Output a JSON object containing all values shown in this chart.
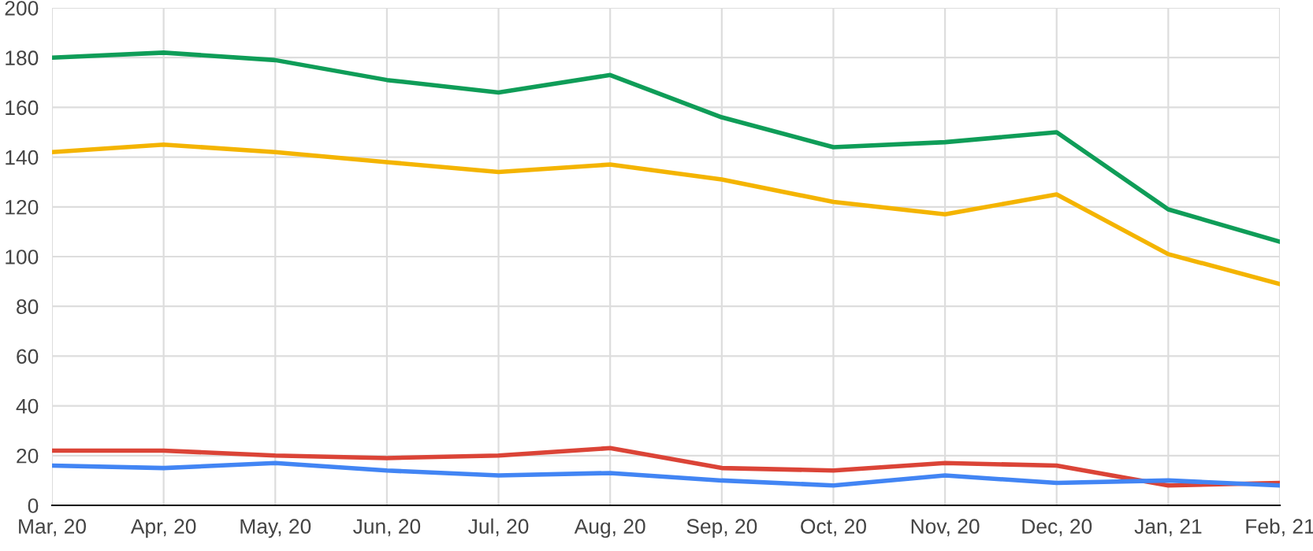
{
  "chart_data": {
    "type": "line",
    "categories": [
      "Mar, 20",
      "Apr, 20",
      "May, 20",
      "Jun, 20",
      "Jul, 20",
      "Aug, 20",
      "Sep, 20",
      "Oct, 20",
      "Nov, 20",
      "Dec, 20",
      "Jan, 21",
      "Feb, 21"
    ],
    "series": [
      {
        "color": "#0f9d58",
        "values": [
          180,
          182,
          179,
          171,
          166,
          173,
          156,
          144,
          146,
          150,
          119,
          106
        ]
      },
      {
        "color": "#f4b400",
        "values": [
          142,
          145,
          142,
          138,
          134,
          137,
          131,
          122,
          117,
          125,
          101,
          89
        ]
      },
      {
        "color": "#db4437",
        "values": [
          22,
          22,
          20,
          19,
          20,
          23,
          15,
          14,
          17,
          16,
          8,
          9
        ]
      },
      {
        "color": "#4285f4",
        "values": [
          16,
          15,
          17,
          14,
          12,
          13,
          10,
          8,
          12,
          9,
          10,
          8
        ]
      }
    ],
    "ylim": [
      0,
      200
    ],
    "yticks": [
      0,
      20,
      40,
      60,
      80,
      100,
      120,
      140,
      160,
      180,
      200
    ],
    "grid": true,
    "marker": "none",
    "line_style": "solid"
  }
}
